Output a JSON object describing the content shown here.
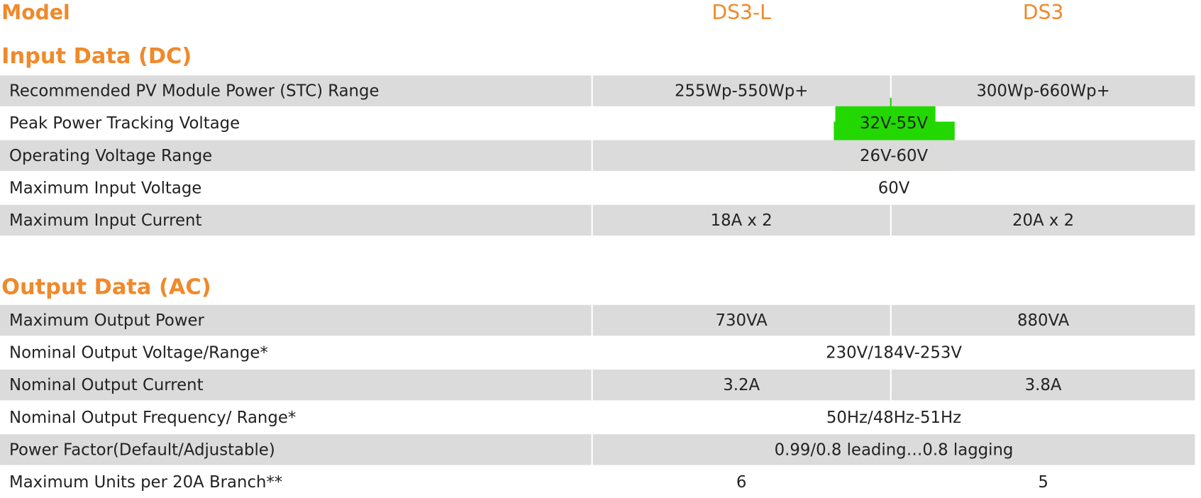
{
  "header": {
    "label": "Model",
    "columns": [
      "DS3-L",
      "DS3"
    ]
  },
  "sections": [
    {
      "title": "Input Data (DC)",
      "rows": [
        {
          "label": "Recommended PV Module Power (STC) Range",
          "values": [
            "255Wp-550Wp+",
            "300Wp-660Wp+"
          ]
        },
        {
          "label": "Peak Power Tracking Voltage",
          "values": [
            "32V-55V"
          ]
        },
        {
          "label": "Operating Voltage Range",
          "values": [
            "26V-60V"
          ]
        },
        {
          "label": "Maximum Input Voltage",
          "values": [
            "60V"
          ]
        },
        {
          "label": "Maximum Input Current",
          "values": [
            "18A x 2",
            "20A x 2"
          ]
        }
      ]
    },
    {
      "title": "Output Data (AC)",
      "rows": [
        {
          "label": "Maximum Output Power",
          "values": [
            "730VA",
            "880VA"
          ]
        },
        {
          "label": "Nominal Output Voltage/Range*",
          "values": [
            "230V/184V-253V"
          ]
        },
        {
          "label": "Nominal Output Current",
          "values": [
            "3.2A",
            "3.8A"
          ]
        },
        {
          "label": "Nominal Output Frequency/ Range*",
          "values": [
            "50Hz/48Hz-51Hz"
          ]
        },
        {
          "label": "Power Factor(Default/Adjustable)",
          "values": [
            "0.99/0.8 leading…0.8 lagging"
          ]
        },
        {
          "label": "Maximum Units per 20A Branch**",
          "values": [
            "6",
            "5"
          ]
        }
      ]
    }
  ]
}
